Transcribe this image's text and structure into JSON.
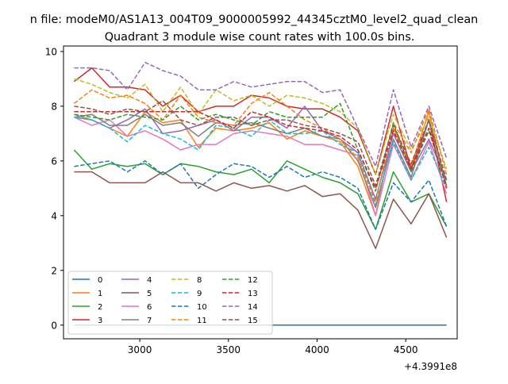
{
  "suptitle": "n file: modeM0/AS1A13_004T09_9000005992_44345cztM0_level2_quad_clean",
  "chart_data": {
    "type": "line",
    "title": "Quadrant 3 module wise count rates with 100.0s bins.",
    "xlabel": "",
    "ylabel": "",
    "x_offset_label": "+4.3991e8",
    "xlim": [
      2570,
      4790
    ],
    "ylim": [
      -0.5,
      10.2
    ],
    "x_ticks": [
      3000,
      3500,
      4000,
      4500
    ],
    "x_tick_labels": [
      "3000",
      "3500",
      "4000",
      "4500"
    ],
    "y_ticks": [
      0,
      2,
      4,
      6,
      8,
      10
    ],
    "y_tick_labels": [
      "0",
      "2",
      "4",
      "6",
      "8",
      "10"
    ],
    "grid": false,
    "legend_location": "lower-left",
    "legend_columns": 4,
    "x": [
      2630,
      2730,
      2830,
      2930,
      3030,
      3130,
      3230,
      3330,
      3430,
      3530,
      3630,
      3730,
      3830,
      3930,
      4030,
      4130,
      4230,
      4330,
      4430,
      4530,
      4630,
      4730
    ],
    "series": [
      {
        "name": "0",
        "color": "#1f77b4",
        "dashed": false,
        "values": [
          0,
          0,
          0,
          0,
          0,
          0,
          0,
          0,
          0,
          0,
          0,
          0,
          0,
          0,
          0,
          0,
          0,
          0,
          0,
          0,
          0,
          0
        ]
      },
      {
        "name": "1",
        "color": "#ff7f0e",
        "dashed": false,
        "values": [
          7.7,
          7.5,
          7.2,
          6.9,
          7.8,
          7.4,
          7.5,
          6.5,
          7.2,
          7.1,
          7.2,
          7.4,
          6.8,
          7.1,
          6.9,
          6.7,
          5.8,
          4.0,
          7.2,
          5.8,
          7.8,
          5.0
        ]
      },
      {
        "name": "2",
        "color": "#2ca02c",
        "dashed": false,
        "values": [
          6.4,
          5.7,
          5.9,
          5.8,
          5.9,
          5.5,
          5.9,
          5.8,
          5.6,
          5.5,
          5.7,
          5.2,
          6.0,
          5.7,
          5.4,
          5.2,
          4.8,
          3.5,
          5.6,
          4.5,
          4.8,
          3.6
        ]
      },
      {
        "name": "3",
        "color": "#d62728",
        "dashed": false,
        "values": [
          8.9,
          9.4,
          8.7,
          8.7,
          8.6,
          8.0,
          8.4,
          7.8,
          8.0,
          8.0,
          8.4,
          8.3,
          8.0,
          7.9,
          7.9,
          7.6,
          7.1,
          5.5,
          8.0,
          5.7,
          7.5,
          4.5
        ]
      },
      {
        "name": "4",
        "color": "#9467bd",
        "dashed": false,
        "values": [
          7.6,
          7.5,
          7.2,
          7.5,
          7.9,
          7.0,
          7.1,
          7.3,
          7.5,
          7.1,
          7.6,
          7.6,
          7.2,
          8.0,
          7.1,
          6.8,
          6.3,
          4.6,
          7.0,
          5.6,
          6.8,
          5.3
        ]
      },
      {
        "name": "5",
        "color": "#8c564b",
        "dashed": false,
        "values": [
          5.6,
          5.6,
          5.2,
          5.2,
          5.2,
          5.6,
          5.2,
          5.2,
          4.9,
          5.2,
          5.0,
          5.1,
          4.9,
          5.1,
          4.7,
          4.8,
          4.2,
          2.8,
          4.6,
          3.7,
          4.8,
          3.2
        ]
      },
      {
        "name": "6",
        "color": "#e377c2",
        "dashed": false,
        "values": [
          7.6,
          7.3,
          7.5,
          6.9,
          7.1,
          6.8,
          6.4,
          6.6,
          6.6,
          7.0,
          7.1,
          7.0,
          6.9,
          6.6,
          6.6,
          6.4,
          6.2,
          4.0,
          6.6,
          5.3,
          6.7,
          4.8
        ]
      },
      {
        "name": "7",
        "color": "#7f7f7f",
        "dashed": false,
        "values": [
          7.6,
          7.7,
          7.3,
          7.3,
          7.7,
          7.3,
          7.4,
          6.9,
          7.4,
          7.3,
          7.4,
          7.2,
          7.0,
          7.2,
          6.9,
          6.8,
          6.0,
          4.3,
          6.8,
          5.4,
          7.5,
          5.1
        ]
      },
      {
        "name": "8",
        "color": "#bcbd22",
        "dashed": true,
        "values": [
          9.0,
          8.8,
          8.5,
          8.3,
          8.8,
          7.8,
          8.7,
          7.7,
          8.6,
          8.2,
          8.4,
          8.0,
          8.4,
          8.3,
          8.1,
          7.8,
          7.2,
          5.5,
          7.7,
          6.4,
          7.6,
          5.7
        ]
      },
      {
        "name": "9",
        "color": "#17becf",
        "dashed": true,
        "values": [
          7.6,
          7.5,
          7.2,
          6.7,
          7.3,
          7.0,
          6.8,
          6.4,
          7.3,
          7.2,
          6.9,
          7.5,
          7.0,
          7.0,
          7.1,
          6.6,
          6.3,
          4.4,
          6.7,
          5.3,
          6.5,
          5.0
        ]
      },
      {
        "name": "10",
        "color": "#1f77b4",
        "dashed": true,
        "values": [
          5.8,
          5.9,
          6.0,
          5.6,
          6.0,
          5.5,
          5.9,
          5.0,
          5.5,
          5.9,
          5.8,
          5.4,
          5.8,
          5.4,
          5.6,
          5.4,
          5.0,
          3.5,
          5.2,
          4.5,
          5.3,
          3.6
        ]
      },
      {
        "name": "11",
        "color": "#ff7f0e",
        "dashed": true,
        "values": [
          8.1,
          8.6,
          8.3,
          8.4,
          8.1,
          7.5,
          8.4,
          7.6,
          7.4,
          7.3,
          8.1,
          8.5,
          8.0,
          7.5,
          7.2,
          6.8,
          6.1,
          4.5,
          7.4,
          6.3,
          7.9,
          5.5
        ]
      },
      {
        "name": "12",
        "color": "#2ca02c",
        "dashed": true,
        "values": [
          7.7,
          7.6,
          7.5,
          7.7,
          7.6,
          7.5,
          8.0,
          7.5,
          7.7,
          7.5,
          7.3,
          7.8,
          7.6,
          7.6,
          7.6,
          8.1,
          6.4,
          4.9,
          7.4,
          5.6,
          7.1,
          5.1
        ]
      },
      {
        "name": "13",
        "color": "#d62728",
        "dashed": true,
        "values": [
          7.8,
          7.8,
          7.8,
          7.8,
          7.8,
          7.8,
          7.8,
          7.8,
          7.5,
          7.2,
          7.8,
          7.6,
          7.3,
          7.2,
          7.1,
          6.9,
          6.4,
          5.0,
          7.1,
          5.7,
          7.2,
          5.0
        ]
      },
      {
        "name": "14",
        "color": "#9467bd",
        "dashed": true,
        "values": [
          9.4,
          9.4,
          9.3,
          8.6,
          9.6,
          9.3,
          9.1,
          8.6,
          8.6,
          8.9,
          8.7,
          8.8,
          8.9,
          8.9,
          8.5,
          8.6,
          7.2,
          5.8,
          8.6,
          6.5,
          8.0,
          6.1
        ]
      },
      {
        "name": "15",
        "color": "#8c564b",
        "dashed": true,
        "values": [
          8.0,
          7.9,
          7.7,
          7.9,
          7.8,
          8.2,
          7.5,
          7.3,
          7.6,
          7.6,
          7.3,
          7.5,
          7.5,
          7.3,
          7.2,
          7.0,
          6.7,
          5.1,
          7.3,
          5.9,
          7.5,
          5.3
        ]
      }
    ]
  }
}
